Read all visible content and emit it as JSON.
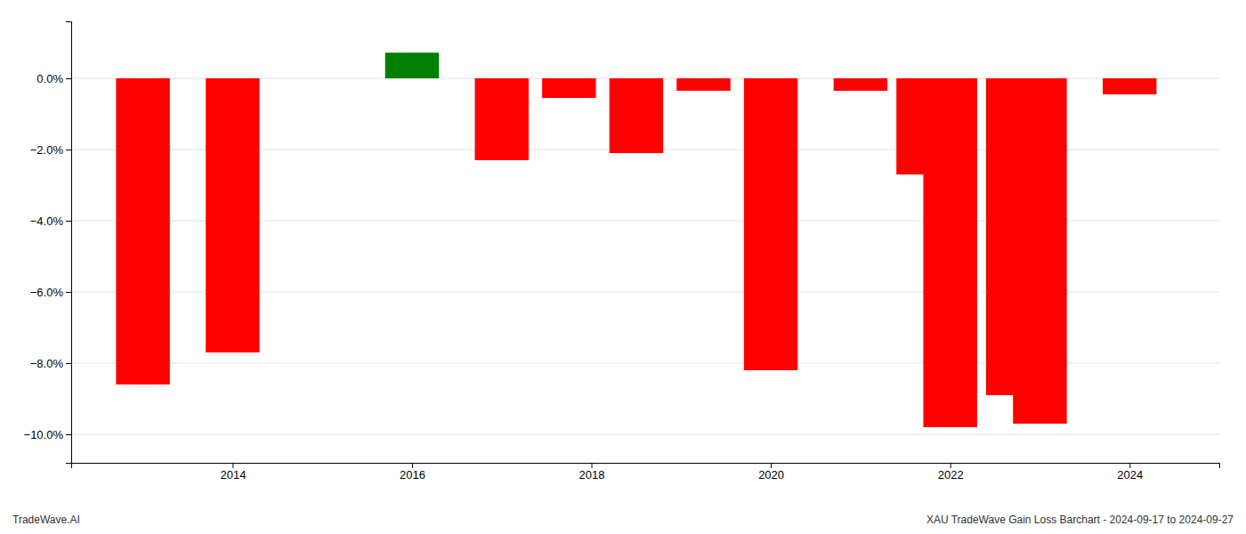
{
  "chart_data": {
    "type": "bar",
    "x": [
      2013,
      2014,
      2016,
      2017,
      2017.75,
      2018.5,
      2019.25,
      2020,
      2021,
      2021.7,
      2022,
      2022.7,
      2023,
      2024
    ],
    "values": [
      -0.086,
      -0.077,
      0.0072,
      -0.023,
      -0.0055,
      -0.021,
      -0.0035,
      -0.082,
      -0.0035,
      -0.027,
      -0.098,
      -0.089,
      -0.097,
      -0.0045
    ],
    "colors": [
      "#ff0000",
      "#ff0000",
      "#008000",
      "#ff0000",
      "#ff0000",
      "#ff0000",
      "#ff0000",
      "#ff0000",
      "#ff0000",
      "#ff0000",
      "#ff0000",
      "#ff0000",
      "#ff0000",
      "#ff0000"
    ],
    "xlim": [
      2012.2,
      2025.0
    ],
    "xticks": [
      2014,
      2016,
      2018,
      2020,
      2022,
      2024
    ],
    "ylim": [
      -0.108,
      0.016
    ],
    "yticks": [
      {
        "value": 0.0,
        "label": "0.0%"
      },
      {
        "value": -0.02,
        "label": "−2.0%"
      },
      {
        "value": -0.04,
        "label": "−4.0%"
      },
      {
        "value": -0.06,
        "label": "−6.0%"
      },
      {
        "value": -0.08,
        "label": "−8.0%"
      },
      {
        "value": -0.1,
        "label": "−10.0%"
      }
    ],
    "grid": true,
    "annotations": [
      "TradeWave.AI",
      "XAU TradeWave Gain Loss Barchart - 2024-09-17 to 2024-09-27"
    ]
  }
}
